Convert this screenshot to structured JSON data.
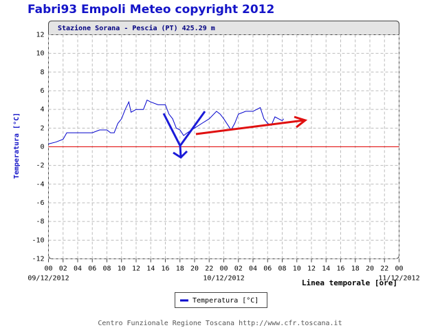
{
  "chart_data": {
    "type": "line",
    "title": "Fabri93 Empoli Meteo copyright 2012",
    "subtitle": "Stazione Sorana - Pescia (PT) 425.29 m",
    "x_label": "Linea temporale [ore]",
    "y_label": "Temperatura [°C]",
    "footer": "Centro Funzionale Regione Toscana http://www.cfr.toscana.it",
    "xlim": [
      0,
      48
    ],
    "ylim": [
      -12,
      12
    ],
    "yticks": [
      -12,
      -10,
      -8,
      -6,
      -4,
      -2,
      0,
      2,
      4,
      6,
      8,
      10,
      12
    ],
    "xticks": [
      {
        "value": 0,
        "label": "00"
      },
      {
        "value": 2,
        "label": "02"
      },
      {
        "value": 4,
        "label": "04"
      },
      {
        "value": 6,
        "label": "06"
      },
      {
        "value": 8,
        "label": "08"
      },
      {
        "value": 10,
        "label": "10"
      },
      {
        "value": 12,
        "label": "12"
      },
      {
        "value": 14,
        "label": "14"
      },
      {
        "value": 16,
        "label": "16"
      },
      {
        "value": 18,
        "label": "18"
      },
      {
        "value": 20,
        "label": "20"
      },
      {
        "value": 22,
        "label": "22"
      },
      {
        "value": 24,
        "label": "00"
      },
      {
        "value": 26,
        "label": "02"
      },
      {
        "value": 28,
        "label": "04"
      },
      {
        "value": 30,
        "label": "06"
      },
      {
        "value": 32,
        "label": "08"
      },
      {
        "value": 34,
        "label": "10"
      },
      {
        "value": 36,
        "label": "12"
      },
      {
        "value": 38,
        "label": "14"
      },
      {
        "value": 40,
        "label": "16"
      },
      {
        "value": 42,
        "label": "18"
      },
      {
        "value": 44,
        "label": "20"
      },
      {
        "value": 46,
        "label": "22"
      },
      {
        "value": 48,
        "label": "00"
      }
    ],
    "date_labels": [
      {
        "value": 0,
        "label": "09/12/2012"
      },
      {
        "value": 24,
        "label": "10/12/2012"
      },
      {
        "value": 48,
        "label": "11/12/2012"
      }
    ],
    "grid": true,
    "zero_line": {
      "value": 0,
      "color": "#e00000"
    },
    "series": [
      {
        "name": "Temperatura [°C]",
        "color": "#0000cc",
        "x": [
          0,
          1,
          2,
          2.5,
          3,
          6,
          7,
          8,
          8.5,
          9,
          9.5,
          10,
          10.5,
          11,
          11.3,
          12,
          13,
          13.5,
          14,
          15,
          16,
          16.5,
          17,
          17.5,
          18,
          18.5,
          19,
          20,
          21,
          22,
          23,
          23.5,
          24,
          25,
          25.5,
          26,
          27,
          28,
          29,
          29.5,
          30,
          30.5,
          31,
          31.5,
          32,
          32.2
        ],
        "values": [
          0.3,
          0.5,
          0.8,
          1.5,
          1.5,
          1.5,
          1.8,
          1.8,
          1.5,
          1.5,
          2.5,
          3.0,
          4.0,
          4.8,
          3.7,
          4.0,
          4.0,
          5.0,
          4.8,
          4.5,
          4.5,
          3.5,
          3.0,
          2.0,
          1.8,
          1.2,
          1.5,
          2.0,
          2.5,
          3.0,
          3.8,
          3.5,
          3.0,
          1.8,
          2.5,
          3.5,
          3.8,
          3.8,
          4.2,
          3.0,
          2.5,
          2.3,
          3.2,
          3.0,
          2.8,
          3.0
        ]
      }
    ]
  }
}
